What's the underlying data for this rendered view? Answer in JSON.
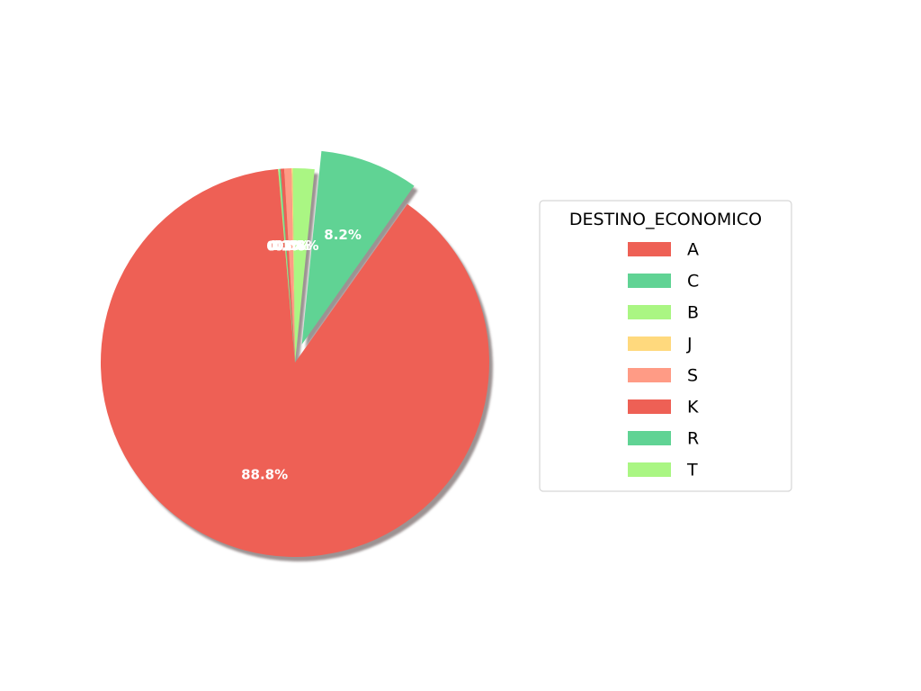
{
  "chart_data": {
    "type": "pie",
    "legend_title": "DESTINO_ECONOMICO",
    "legend_position": "right",
    "shadow": true,
    "start_angle_deg": 95,
    "exploded": [
      "C"
    ],
    "slices": [
      {
        "label": "A",
        "percent": 88.8,
        "color": "#ee6055",
        "pct_label": "88.8%"
      },
      {
        "label": "C",
        "percent": 8.2,
        "color": "#60d394",
        "pct_label": "8.2%"
      },
      {
        "label": "B",
        "percent": 1.8,
        "color": "#aaf683",
        "pct_label": "1.8%"
      },
      {
        "label": "J",
        "percent": 0.1,
        "color": "#ffd97d",
        "pct_label": "0.1%"
      },
      {
        "label": "S",
        "percent": 0.6,
        "color": "#ff9b85",
        "pct_label": "0.6%"
      },
      {
        "label": "K",
        "percent": 0.3,
        "color": "#ee6055",
        "pct_label": "0.3%"
      },
      {
        "label": "R",
        "percent": 0.1,
        "color": "#60d394",
        "pct_label": "0.1%"
      },
      {
        "label": "T",
        "percent": 0.1,
        "color": "#aaf683",
        "pct_label": "0.1%"
      }
    ]
  }
}
